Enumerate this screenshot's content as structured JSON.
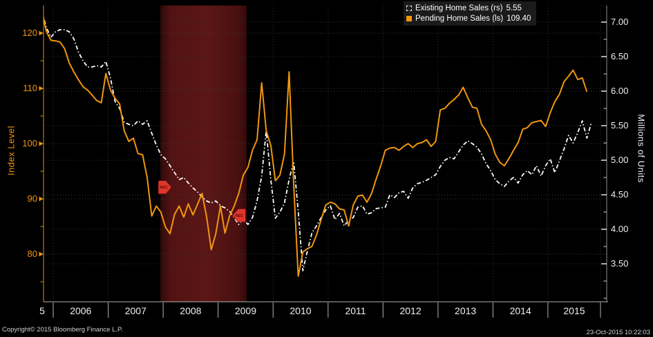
{
  "window": {
    "background": "#000000"
  },
  "legend": {
    "items": [
      {
        "label": "Existing Home Sales (rs)",
        "value": "5.55",
        "marker": "dashed-open-square",
        "color": "#ffffff"
      },
      {
        "label": "Pending Home Sales (ls)",
        "value": "109.40",
        "marker": "filled-square",
        "color": "#f0960f"
      }
    ]
  },
  "footer": {
    "copyright": "Copyright© 2015 Bloomberg Finance L.P.",
    "timestamp": "23-Oct-2015 10:22:03"
  },
  "chart_data": {
    "type": "line",
    "title": "",
    "left_axis": {
      "title": "Index Level",
      "color": "#f0960f",
      "ticks": [
        120,
        110,
        100,
        90,
        80
      ],
      "minor_ticks": [
        115,
        105,
        95,
        85,
        75
      ],
      "range": [
        71,
        125
      ]
    },
    "right_axis": {
      "title": "Millions of Units",
      "color": "#f0f0f0",
      "tick_labels": [
        "7.00",
        "6.50",
        "6.00",
        "5.50",
        "5.00",
        "4.50",
        "4.00",
        "3.50"
      ],
      "minor_ticks": [
        6.75,
        6.25,
        5.75,
        5.25,
        4.75,
        4.25,
        3.75,
        3.25,
        3.0
      ],
      "range": [
        2.95,
        7.24
      ]
    },
    "x_axis": {
      "first_partial_label": "5",
      "year_labels": [
        "2006",
        "2007",
        "2008",
        "2009",
        "2010",
        "2011",
        "2012",
        "2013",
        "2014",
        "2015"
      ],
      "range": [
        2005.75,
        2015.95
      ],
      "grid": "dotted"
    },
    "recession_band": {
      "start": 2007.95,
      "end": 2009.52,
      "color": "#541212"
    },
    "event_markers": [
      {
        "label": "REC",
        "x": 2007.95,
        "y_index": 92.1,
        "direction": "right",
        "color": "#dd362c"
      },
      {
        "label": "REC",
        "x": 2009.45,
        "y_index": 87.0,
        "direction": "left",
        "color": "#dd362c"
      }
    ],
    "series": [
      {
        "name": "Existing Home Sales",
        "axis": "right",
        "unit": "Millions of Units",
        "style": "dash-dot",
        "color": "#ffffff",
        "last_value": 5.55,
        "points": [
          [
            2005.792,
            7.16
          ],
          [
            2005.875,
            6.92
          ],
          [
            2005.958,
            6.78
          ],
          [
            2006.042,
            6.86
          ],
          [
            2006.125,
            6.89
          ],
          [
            2006.208,
            6.89
          ],
          [
            2006.292,
            6.86
          ],
          [
            2006.375,
            6.76
          ],
          [
            2006.458,
            6.57
          ],
          [
            2006.542,
            6.44
          ],
          [
            2006.625,
            6.35
          ],
          [
            2006.708,
            6.35
          ],
          [
            2006.792,
            6.37
          ],
          [
            2006.875,
            6.35
          ],
          [
            2006.958,
            6.43
          ],
          [
            2007.042,
            6.19
          ],
          [
            2007.125,
            5.85
          ],
          [
            2007.208,
            5.75
          ],
          [
            2007.292,
            5.55
          ],
          [
            2007.375,
            5.52
          ],
          [
            2007.458,
            5.5
          ],
          [
            2007.542,
            5.57
          ],
          [
            2007.625,
            5.52
          ],
          [
            2007.708,
            5.57
          ],
          [
            2007.792,
            5.39
          ],
          [
            2007.875,
            5.22
          ],
          [
            2007.958,
            5.08
          ],
          [
            2008.042,
            5.02
          ],
          [
            2008.125,
            4.92
          ],
          [
            2008.208,
            4.82
          ],
          [
            2008.292,
            4.72
          ],
          [
            2008.375,
            4.75
          ],
          [
            2008.458,
            4.67
          ],
          [
            2008.542,
            4.6
          ],
          [
            2008.625,
            4.54
          ],
          [
            2008.708,
            4.47
          ],
          [
            2008.792,
            4.41
          ],
          [
            2008.875,
            4.38
          ],
          [
            2008.958,
            4.41
          ],
          [
            2009.042,
            4.34
          ],
          [
            2009.125,
            4.31
          ],
          [
            2009.208,
            4.26
          ],
          [
            2009.292,
            4.17
          ],
          [
            2009.375,
            4.07
          ],
          [
            2009.458,
            4.15
          ],
          [
            2009.542,
            4.07
          ],
          [
            2009.625,
            4.17
          ],
          [
            2009.708,
            4.41
          ],
          [
            2009.792,
            4.77
          ],
          [
            2009.875,
            5.43
          ],
          [
            2009.958,
            4.72
          ],
          [
            2010.042,
            4.16
          ],
          [
            2010.125,
            4.25
          ],
          [
            2010.208,
            4.38
          ],
          [
            2010.292,
            4.72
          ],
          [
            2010.375,
            4.98
          ],
          [
            2010.458,
            4.26
          ],
          [
            2010.542,
            3.4
          ],
          [
            2010.625,
            3.69
          ],
          [
            2010.708,
            3.95
          ],
          [
            2010.792,
            4.05
          ],
          [
            2010.875,
            4.17
          ],
          [
            2010.958,
            4.28
          ],
          [
            2011.042,
            4.34
          ],
          [
            2011.125,
            4.14
          ],
          [
            2011.208,
            4.23
          ],
          [
            2011.292,
            4.05
          ],
          [
            2011.375,
            4.13
          ],
          [
            2011.458,
            4.17
          ],
          [
            2011.542,
            4.32
          ],
          [
            2011.625,
            4.34
          ],
          [
            2011.708,
            4.22
          ],
          [
            2011.792,
            4.24
          ],
          [
            2011.875,
            4.3
          ],
          [
            2011.958,
            4.31
          ],
          [
            2012.042,
            4.32
          ],
          [
            2012.125,
            4.5
          ],
          [
            2012.208,
            4.46
          ],
          [
            2012.292,
            4.53
          ],
          [
            2012.375,
            4.55
          ],
          [
            2012.458,
            4.45
          ],
          [
            2012.542,
            4.6
          ],
          [
            2012.625,
            4.66
          ],
          [
            2012.708,
            4.68
          ],
          [
            2012.792,
            4.71
          ],
          [
            2012.875,
            4.75
          ],
          [
            2012.958,
            4.79
          ],
          [
            2013.042,
            4.91
          ],
          [
            2013.125,
            5.0
          ],
          [
            2013.208,
            5.04
          ],
          [
            2013.292,
            5.02
          ],
          [
            2013.375,
            5.12
          ],
          [
            2013.458,
            5.22
          ],
          [
            2013.542,
            5.28
          ],
          [
            2013.625,
            5.24
          ],
          [
            2013.708,
            5.19
          ],
          [
            2013.792,
            5.09
          ],
          [
            2013.875,
            4.95
          ],
          [
            2013.958,
            4.85
          ],
          [
            2014.042,
            4.72
          ],
          [
            2014.125,
            4.66
          ],
          [
            2014.208,
            4.62
          ],
          [
            2014.292,
            4.7
          ],
          [
            2014.375,
            4.75
          ],
          [
            2014.458,
            4.67
          ],
          [
            2014.542,
            4.79
          ],
          [
            2014.625,
            4.85
          ],
          [
            2014.708,
            4.79
          ],
          [
            2014.792,
            4.92
          ],
          [
            2014.875,
            4.77
          ],
          [
            2014.958,
            4.92
          ],
          [
            2015.042,
            5.02
          ],
          [
            2015.125,
            4.82
          ],
          [
            2015.208,
            4.99
          ],
          [
            2015.292,
            5.16
          ],
          [
            2015.375,
            5.36
          ],
          [
            2015.458,
            5.25
          ],
          [
            2015.542,
            5.4
          ],
          [
            2015.625,
            5.57
          ],
          [
            2015.708,
            5.32
          ],
          [
            2015.792,
            5.55
          ]
        ]
      },
      {
        "name": "Pending Home Sales",
        "axis": "left",
        "unit": "Index Level",
        "style": "solid",
        "color": "#f0960f",
        "last_value": 109.4,
        "points": [
          [
            2005.792,
            124.0
          ],
          [
            2005.875,
            120.3
          ],
          [
            2005.958,
            118.7
          ],
          [
            2006.042,
            118.6
          ],
          [
            2006.125,
            118.4
          ],
          [
            2006.208,
            117.2
          ],
          [
            2006.292,
            114.6
          ],
          [
            2006.375,
            113.0
          ],
          [
            2006.458,
            111.6
          ],
          [
            2006.542,
            110.3
          ],
          [
            2006.625,
            109.7
          ],
          [
            2006.708,
            108.8
          ],
          [
            2006.792,
            107.8
          ],
          [
            2006.875,
            107.4
          ],
          [
            2006.958,
            112.7
          ],
          [
            2007.042,
            109.7
          ],
          [
            2007.125,
            108.2
          ],
          [
            2007.208,
            107.2
          ],
          [
            2007.292,
            102.3
          ],
          [
            2007.375,
            100.4
          ],
          [
            2007.458,
            101.0
          ],
          [
            2007.542,
            98.2
          ],
          [
            2007.625,
            98.0
          ],
          [
            2007.708,
            93.9
          ],
          [
            2007.792,
            86.9
          ],
          [
            2007.875,
            88.7
          ],
          [
            2007.958,
            87.6
          ],
          [
            2008.042,
            84.9
          ],
          [
            2008.125,
            83.7
          ],
          [
            2008.208,
            87.2
          ],
          [
            2008.292,
            88.7
          ],
          [
            2008.375,
            86.7
          ],
          [
            2008.458,
            89.1
          ],
          [
            2008.542,
            87.1
          ],
          [
            2008.625,
            89.0
          ],
          [
            2008.708,
            91.0
          ],
          [
            2008.792,
            86.7
          ],
          [
            2008.875,
            80.8
          ],
          [
            2008.958,
            83.7
          ],
          [
            2009.042,
            88.7
          ],
          [
            2009.125,
            83.8
          ],
          [
            2009.208,
            86.9
          ],
          [
            2009.292,
            88.7
          ],
          [
            2009.375,
            91.0
          ],
          [
            2009.458,
            94.3
          ],
          [
            2009.542,
            95.7
          ],
          [
            2009.625,
            98.8
          ],
          [
            2009.708,
            100.7
          ],
          [
            2009.792,
            111.0
          ],
          [
            2009.875,
            102.3
          ],
          [
            2009.958,
            99.7
          ],
          [
            2010.042,
            93.3
          ],
          [
            2010.125,
            94.3
          ],
          [
            2010.208,
            98.1
          ],
          [
            2010.292,
            113.0
          ],
          [
            2010.375,
            92.6
          ],
          [
            2010.458,
            76.0
          ],
          [
            2010.542,
            80.4
          ],
          [
            2010.625,
            81.0
          ],
          [
            2010.708,
            81.4
          ],
          [
            2010.792,
            83.5
          ],
          [
            2010.875,
            86.3
          ],
          [
            2010.958,
            88.9
          ],
          [
            2011.042,
            89.4
          ],
          [
            2011.125,
            89.1
          ],
          [
            2011.208,
            88.2
          ],
          [
            2011.292,
            88.0
          ],
          [
            2011.375,
            85.1
          ],
          [
            2011.458,
            88.9
          ],
          [
            2011.542,
            90.5
          ],
          [
            2011.625,
            90.7
          ],
          [
            2011.708,
            89.4
          ],
          [
            2011.792,
            91.0
          ],
          [
            2011.875,
            93.6
          ],
          [
            2011.958,
            96.0
          ],
          [
            2012.042,
            98.8
          ],
          [
            2012.125,
            99.2
          ],
          [
            2012.208,
            99.3
          ],
          [
            2012.292,
            98.8
          ],
          [
            2012.375,
            99.5
          ],
          [
            2012.458,
            100.0
          ],
          [
            2012.542,
            99.3
          ],
          [
            2012.625,
            100.0
          ],
          [
            2012.708,
            100.2
          ],
          [
            2012.792,
            100.7
          ],
          [
            2012.875,
            99.5
          ],
          [
            2012.958,
            100.4
          ],
          [
            2013.042,
            106.1
          ],
          [
            2013.125,
            106.4
          ],
          [
            2013.208,
            107.3
          ],
          [
            2013.292,
            108.0
          ],
          [
            2013.375,
            108.8
          ],
          [
            2013.458,
            110.2
          ],
          [
            2013.542,
            108.3
          ],
          [
            2013.625,
            106.6
          ],
          [
            2013.708,
            106.4
          ],
          [
            2013.792,
            103.5
          ],
          [
            2013.875,
            102.3
          ],
          [
            2013.958,
            100.7
          ],
          [
            2014.042,
            98.1
          ],
          [
            2014.125,
            96.6
          ],
          [
            2014.208,
            96.0
          ],
          [
            2014.292,
            97.3
          ],
          [
            2014.375,
            98.8
          ],
          [
            2014.458,
            100.2
          ],
          [
            2014.542,
            102.6
          ],
          [
            2014.625,
            102.9
          ],
          [
            2014.708,
            103.8
          ],
          [
            2014.792,
            104.0
          ],
          [
            2014.875,
            104.2
          ],
          [
            2014.958,
            103.1
          ],
          [
            2015.042,
            105.6
          ],
          [
            2015.125,
            107.6
          ],
          [
            2015.208,
            108.9
          ],
          [
            2015.292,
            111.2
          ],
          [
            2015.375,
            112.2
          ],
          [
            2015.458,
            113.3
          ],
          [
            2015.542,
            111.6
          ],
          [
            2015.625,
            111.9
          ],
          [
            2015.708,
            109.4
          ]
        ]
      }
    ]
  }
}
